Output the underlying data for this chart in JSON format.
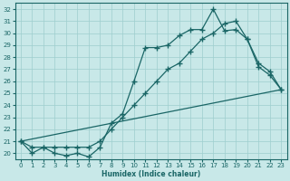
{
  "xlabel": "Humidex (Indice chaleur)",
  "bg_color": "#c8e8e8",
  "grid_color": "#9ecece",
  "line_color": "#1a6666",
  "xlim": [
    -0.5,
    23.5
  ],
  "ylim": [
    19.5,
    32.5
  ],
  "yticks": [
    20,
    21,
    22,
    23,
    24,
    25,
    26,
    27,
    28,
    29,
    30,
    31,
    32
  ],
  "xticks": [
    0,
    1,
    2,
    3,
    4,
    5,
    6,
    7,
    8,
    9,
    10,
    11,
    12,
    13,
    14,
    15,
    16,
    17,
    18,
    19,
    20,
    21,
    22,
    23
  ],
  "series1_x": [
    0,
    1,
    2,
    3,
    4,
    5,
    6,
    7,
    8,
    9,
    10,
    11,
    12,
    13,
    14,
    15,
    16,
    17,
    18,
    19,
    20,
    21,
    22,
    23
  ],
  "series1_y": [
    21.0,
    20.0,
    20.5,
    20.0,
    19.8,
    20.0,
    19.7,
    20.5,
    22.5,
    23.3,
    26.0,
    28.8,
    28.8,
    29.0,
    29.8,
    30.3,
    30.3,
    32.0,
    30.2,
    30.3,
    29.5,
    27.2,
    26.5,
    25.3
  ],
  "series2_x": [
    0,
    1,
    2,
    3,
    4,
    5,
    6,
    7,
    8,
    9,
    10,
    11,
    12,
    13,
    14,
    15,
    16,
    17,
    18,
    19,
    20,
    21,
    22,
    23
  ],
  "series2_y": [
    21.0,
    20.5,
    20.5,
    20.5,
    20.5,
    20.5,
    20.5,
    21.0,
    22.0,
    23.0,
    24.0,
    25.0,
    26.0,
    27.0,
    27.5,
    28.5,
    29.5,
    30.0,
    30.8,
    31.0,
    29.5,
    27.5,
    26.8,
    25.3
  ],
  "series3_x": [
    0,
    23
  ],
  "series3_y": [
    21.0,
    25.3
  ]
}
